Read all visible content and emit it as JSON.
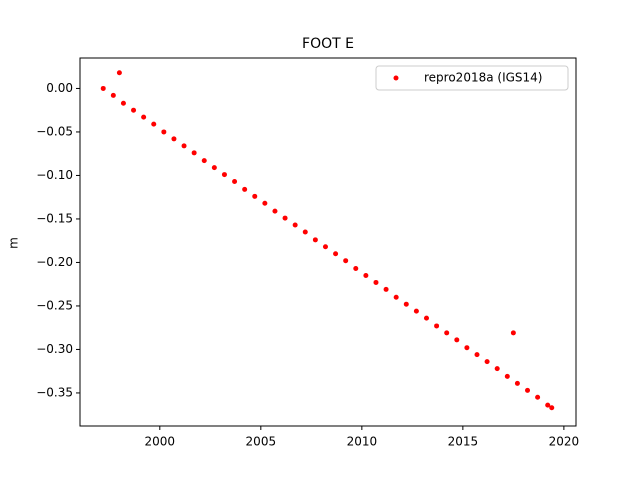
{
  "chart_data": {
    "type": "scatter",
    "title": "FOOT E",
    "y_label": "m",
    "xlim": [
      1996.05,
      2020.6
    ],
    "ylim": [
      -0.388,
      0.035
    ],
    "xticks": [
      2000,
      2005,
      2010,
      2015,
      2020
    ],
    "yticks": [
      {
        "value": 0,
        "label": "0.00"
      },
      {
        "value": -0.05,
        "label": "−0.05"
      },
      {
        "value": -0.1,
        "label": "−0.10"
      },
      {
        "value": -0.15,
        "label": "−0.15"
      },
      {
        "value": -0.2,
        "label": "−0.20"
      },
      {
        "value": -0.25,
        "label": "−0.25"
      },
      {
        "value": -0.3,
        "label": "−0.30"
      },
      {
        "value": -0.35,
        "label": "−0.35"
      }
    ],
    "legend": "upper right",
    "series": [
      {
        "name": "repro2018a (IGS14)",
        "color": "#ff0000",
        "x": [
          1997.2,
          1997.7,
          1998.2,
          1998.7,
          1999.2,
          1999.7,
          2000.2,
          2000.7,
          2001.2,
          2001.7,
          2002.2,
          2002.7,
          2003.2,
          2003.7,
          2004.2,
          2004.7,
          2005.2,
          2005.7,
          2006.2,
          2006.7,
          2007.2,
          2007.7,
          2008.2,
          2008.7,
          2009.2,
          2009.7,
          2010.2,
          2010.7,
          2011.2,
          2011.7,
          2012.2,
          2012.7,
          2013.2,
          2013.7,
          2014.2,
          2014.7,
          2015.2,
          2015.7,
          2016.2,
          2016.7,
          2017.2,
          2017.7,
          2018.2,
          2018.7,
          2019.2,
          2019.4,
          1998.0,
          2017.5
        ],
        "values": [
          0.0,
          -0.008,
          -0.017,
          -0.025,
          -0.033,
          -0.041,
          -0.05,
          -0.058,
          -0.066,
          -0.074,
          -0.083,
          -0.091,
          -0.099,
          -0.107,
          -0.116,
          -0.124,
          -0.132,
          -0.141,
          -0.149,
          -0.157,
          -0.165,
          -0.174,
          -0.182,
          -0.19,
          -0.198,
          -0.207,
          -0.215,
          -0.223,
          -0.231,
          -0.24,
          -0.248,
          -0.256,
          -0.264,
          -0.273,
          -0.281,
          -0.289,
          -0.298,
          -0.306,
          -0.314,
          -0.322,
          -0.331,
          -0.339,
          -0.347,
          -0.355,
          -0.364,
          -0.367,
          0.018,
          -0.281
        ]
      }
    ]
  }
}
